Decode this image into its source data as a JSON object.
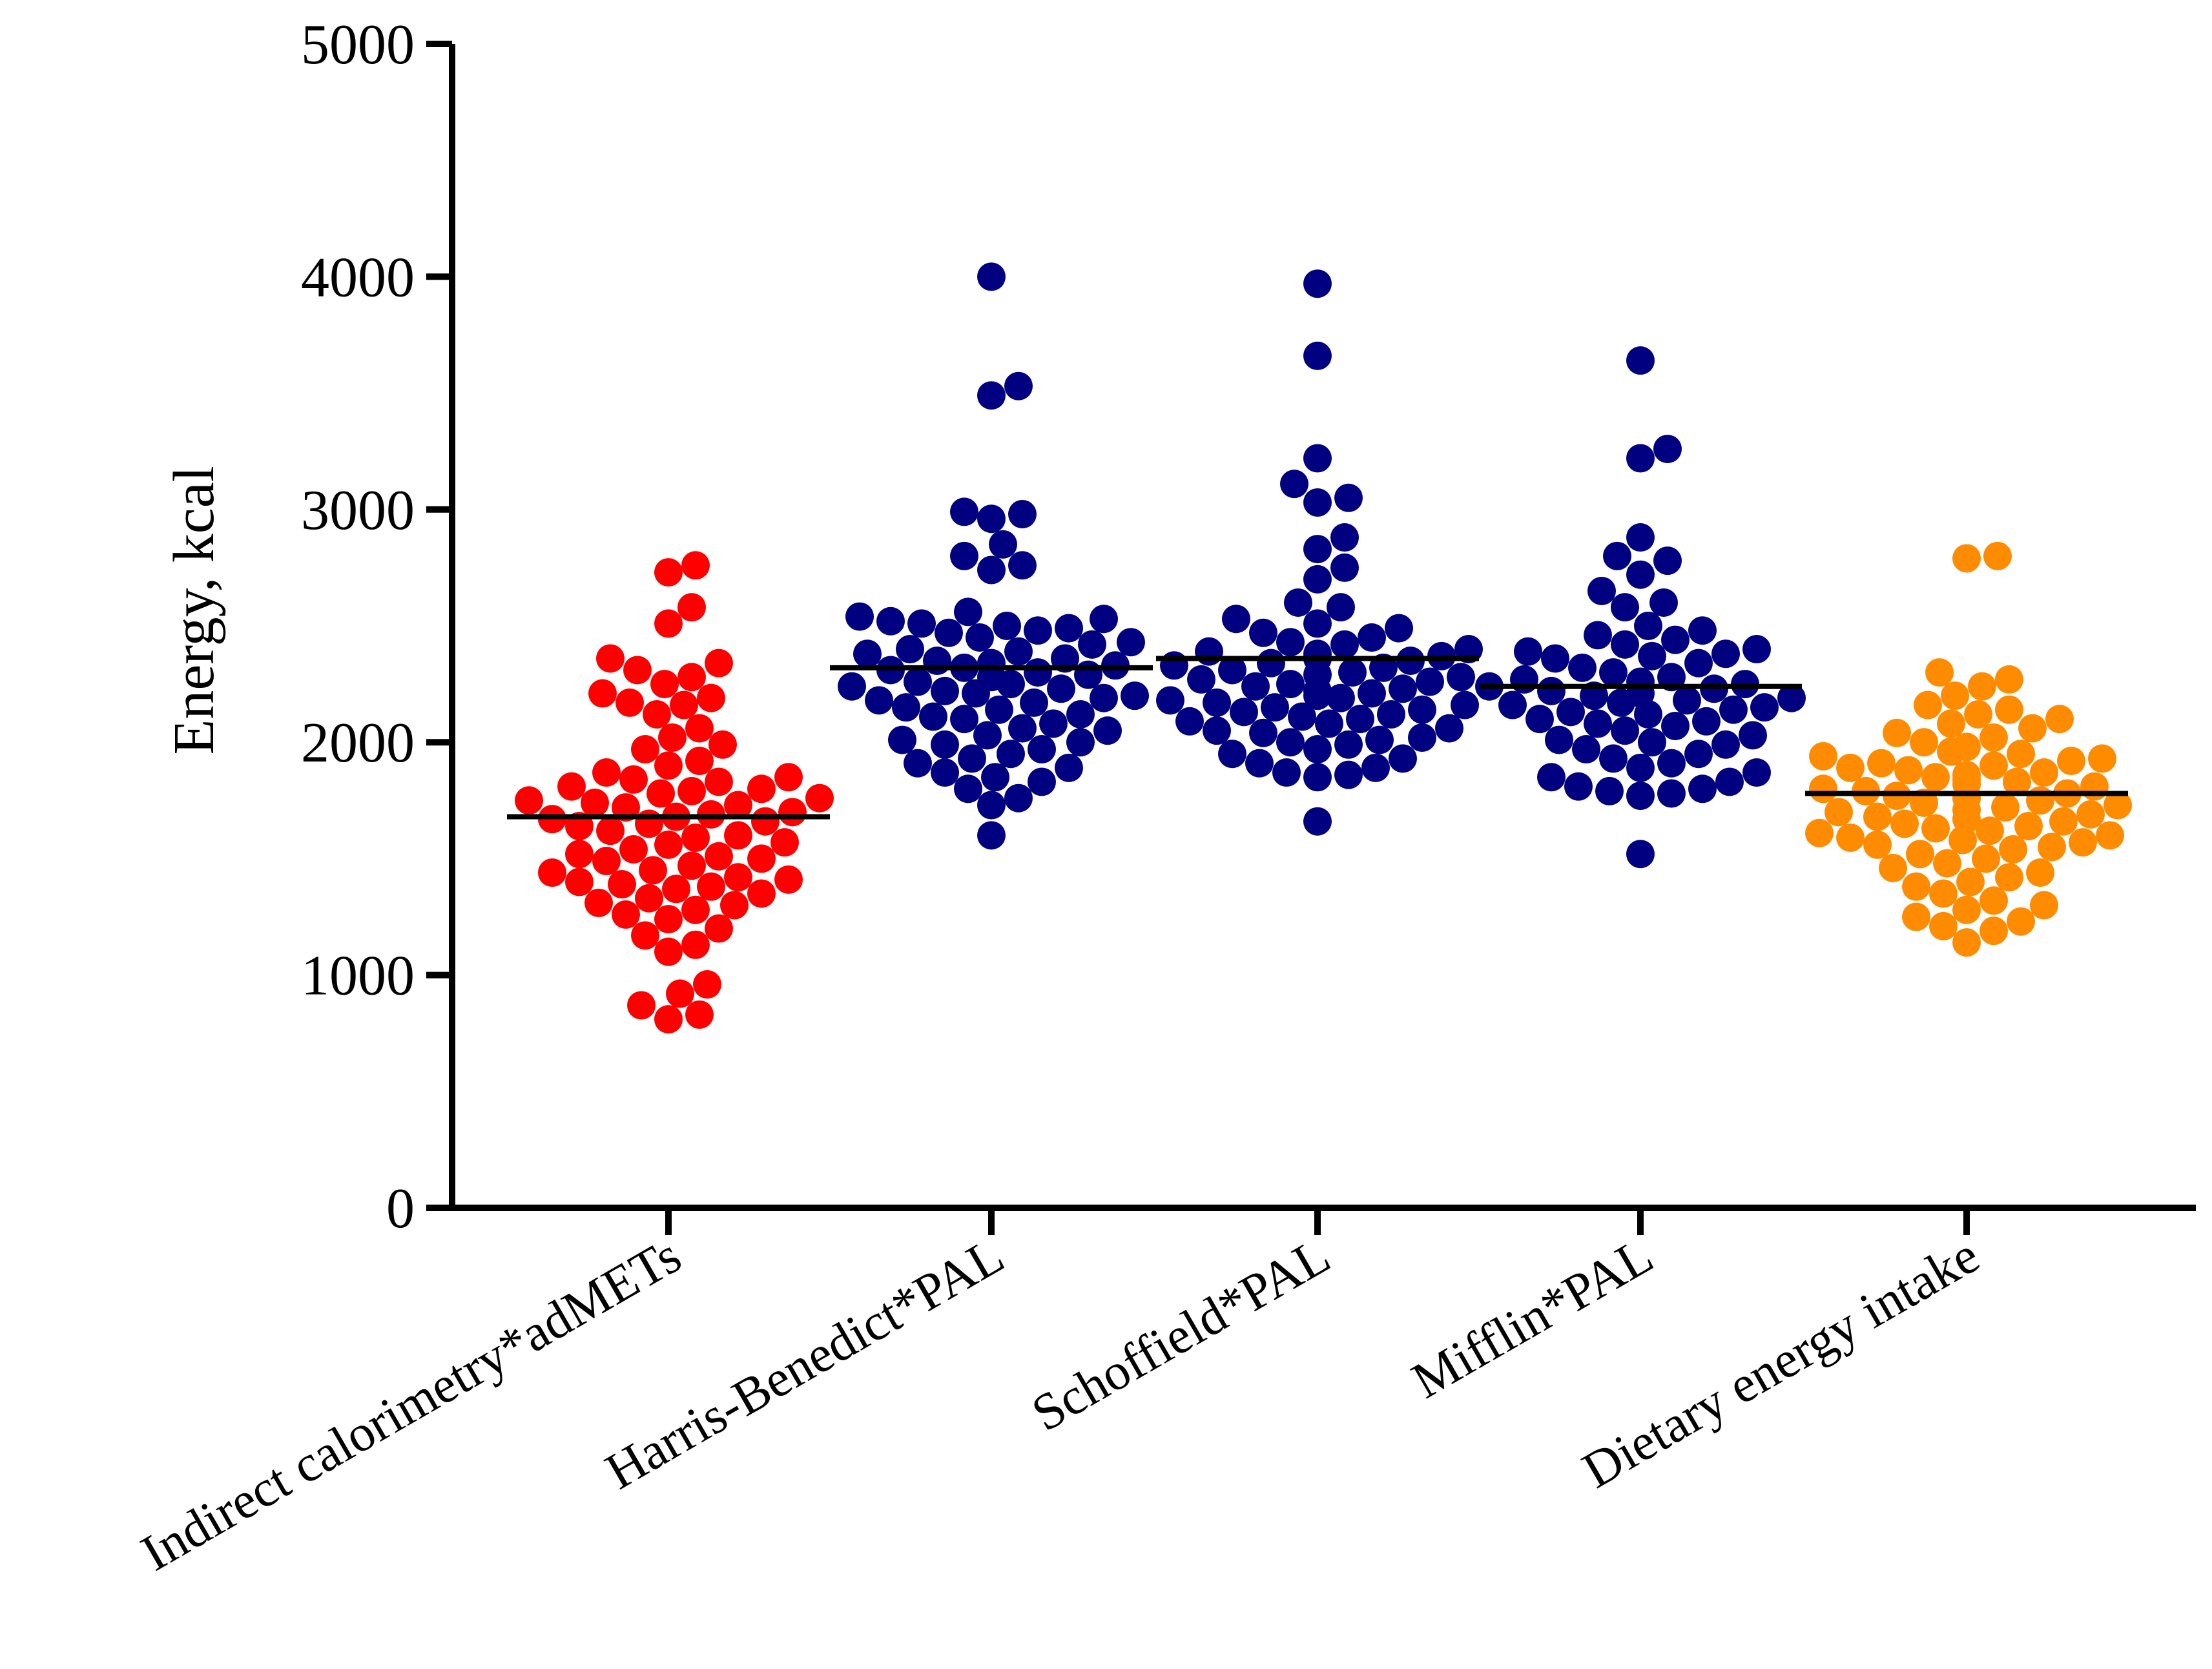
{
  "chart_data": {
    "type": "scatter",
    "subtype": "dot-strip with mean lines",
    "title": "",
    "xlabel": "",
    "ylabel": "Energy, kcal",
    "ylim": [
      0,
      5000
    ],
    "yticks": [
      0,
      1000,
      2000,
      3000,
      4000,
      5000
    ],
    "ytick_labels": [
      "0",
      "1000",
      "2000",
      "3000",
      "4000",
      "5000"
    ],
    "grid": false,
    "legend": "none",
    "categories": [
      "Indirect calorimetry*adMETs",
      "Harris-Benedict*PAL",
      "Schoffield*PAL",
      "Mifflin*PAL",
      "Dietary energy intake"
    ],
    "series": [
      {
        "name": "Indirect calorimetry*adMETs",
        "color": "#ff0000",
        "mean": 1680,
        "values": [
          2760,
          2730,
          2580,
          2510,
          2360,
          2340,
          2310,
          2280,
          2250,
          2210,
          2190,
          2170,
          2160,
          2120,
          2060,
          2020,
          1990,
          1970,
          1920,
          1900,
          1870,
          1850,
          1840,
          1830,
          1810,
          1800,
          1790,
          1780,
          1760,
          1750,
          1740,
          1730,
          1720,
          1700,
          1690,
          1680,
          1670,
          1660,
          1650,
          1640,
          1620,
          1600,
          1590,
          1570,
          1560,
          1540,
          1520,
          1510,
          1500,
          1490,
          1470,
          1450,
          1440,
          1420,
          1410,
          1400,
          1390,
          1380,
          1370,
          1350,
          1330,
          1310,
          1300,
          1280,
          1260,
          1240,
          1200,
          1170,
          1130,
          1100,
          960,
          920,
          870,
          830,
          810
        ]
      },
      {
        "name": "Harris-Benedict*PAL",
        "color": "#000080",
        "mean": 2320,
        "values": [
          4000,
          3530,
          3490,
          2990,
          2980,
          2960,
          2850,
          2800,
          2760,
          2740,
          2560,
          2540,
          2530,
          2520,
          2510,
          2500,
          2490,
          2480,
          2470,
          2450,
          2430,
          2420,
          2400,
          2390,
          2380,
          2360,
          2350,
          2340,
          2330,
          2320,
          2310,
          2300,
          2290,
          2280,
          2260,
          2250,
          2240,
          2230,
          2220,
          2210,
          2200,
          2190,
          2180,
          2170,
          2150,
          2140,
          2120,
          2110,
          2100,
          2080,
          2060,
          2050,
          2030,
          2010,
          2000,
          1990,
          1970,
          1950,
          1930,
          1910,
          1890,
          1870,
          1850,
          1830,
          1800,
          1760,
          1730,
          1600
        ]
      },
      {
        "name": "Schoffield*PAL",
        "color": "#000080",
        "mean": 2360,
        "values": [
          3970,
          3660,
          3220,
          3110,
          3050,
          3030,
          2880,
          2830,
          2750,
          2700,
          2600,
          2580,
          2530,
          2510,
          2490,
          2470,
          2450,
          2430,
          2420,
          2400,
          2390,
          2380,
          2370,
          2360,
          2350,
          2340,
          2330,
          2320,
          2310,
          2300,
          2290,
          2280,
          2270,
          2260,
          2250,
          2240,
          2230,
          2220,
          2210,
          2200,
          2190,
          2180,
          2170,
          2160,
          2150,
          2140,
          2130,
          2120,
          2110,
          2100,
          2090,
          2080,
          2060,
          2050,
          2040,
          2020,
          2010,
          2000,
          1990,
          1970,
          1950,
          1930,
          1910,
          1890,
          1870,
          1860,
          1850,
          1660
        ]
      },
      {
        "name": "Mifflin*PAL",
        "color": "#000080",
        "mean": 2240,
        "values": [
          3640,
          3260,
          3220,
          2880,
          2800,
          2780,
          2720,
          2650,
          2600,
          2580,
          2500,
          2480,
          2460,
          2440,
          2420,
          2400,
          2390,
          2380,
          2370,
          2360,
          2340,
          2320,
          2300,
          2280,
          2270,
          2260,
          2250,
          2240,
          2230,
          2220,
          2210,
          2200,
          2190,
          2180,
          2170,
          2160,
          2150,
          2140,
          2130,
          2120,
          2100,
          2090,
          2080,
          2070,
          2050,
          2030,
          2010,
          2000,
          1990,
          1970,
          1950,
          1930,
          1910,
          1890,
          1870,
          1850,
          1830,
          1810,
          1800,
          1790,
          1780,
          1770,
          1520
        ]
      },
      {
        "name": "Dietary energy intake",
        "color": "#ff8c00",
        "mean": 1780,
        "values": [
          2800,
          2790,
          2300,
          2270,
          2240,
          2200,
          2160,
          2140,
          2120,
          2100,
          2080,
          2060,
          2040,
          2020,
          2000,
          1980,
          1960,
          1950,
          1940,
          1930,
          1920,
          1910,
          1900,
          1890,
          1880,
          1870,
          1860,
          1850,
          1840,
          1830,
          1820,
          1810,
          1800,
          1790,
          1780,
          1770,
          1760,
          1750,
          1740,
          1730,
          1720,
          1710,
          1700,
          1690,
          1680,
          1670,
          1660,
          1650,
          1640,
          1630,
          1620,
          1610,
          1600,
          1590,
          1580,
          1570,
          1560,
          1550,
          1540,
          1520,
          1500,
          1480,
          1460,
          1440,
          1420,
          1400,
          1380,
          1350,
          1320,
          1300,
          1280,
          1250,
          1230,
          1210,
          1190,
          1140
        ]
      }
    ]
  }
}
